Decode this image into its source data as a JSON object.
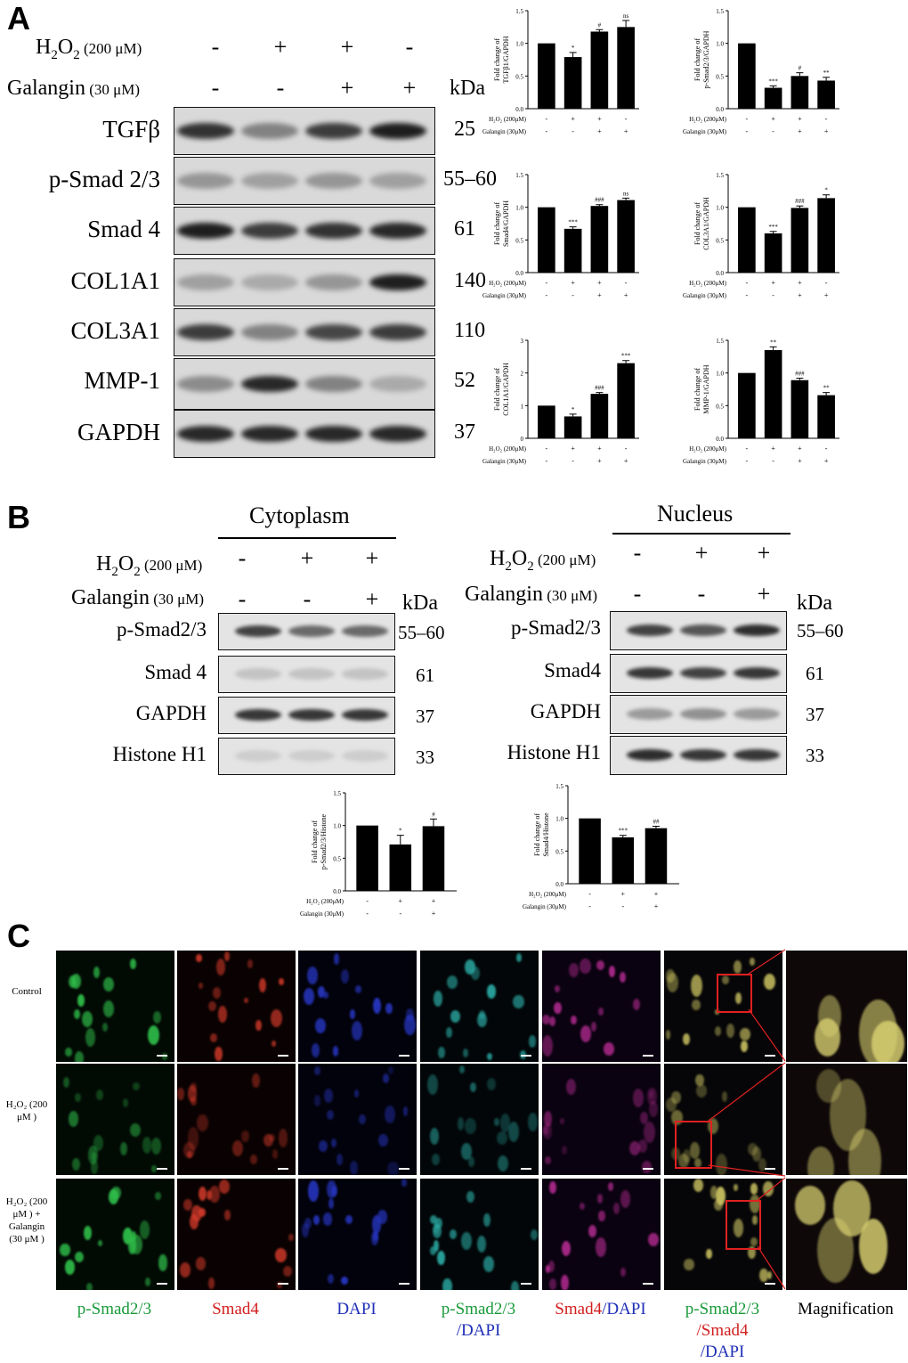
{
  "panel_a": {
    "letter": "A",
    "conditions": [
      {
        "label": "H",
        "sub": "2",
        "label2": "O",
        "sub2": "2",
        "dose": " (200 μM)",
        "signs": [
          "-",
          "+",
          "+",
          "-"
        ]
      },
      {
        "label": "Galangin",
        "dose": " (30 μM)",
        "signs": [
          "-",
          "-",
          "+",
          "+"
        ]
      }
    ],
    "kda": "kDa",
    "blots": [
      {
        "name": "TGFβ",
        "mw": "25"
      },
      {
        "name": "p-Smad 2/3",
        "mw": "55–60"
      },
      {
        "name": "Smad 4",
        "mw": "61"
      },
      {
        "name": "COL1A1",
        "mw": "140"
      },
      {
        "name": "COL3A1",
        "mw": "110"
      },
      {
        "name": "MMP-1",
        "mw": "52"
      },
      {
        "name": "GAPDH",
        "mw": "37"
      }
    ]
  },
  "chart_cond": {
    "h2o2": "H₂O₂ (200μM)",
    "galangin": "Galangin (30μM)",
    "h2o2_signs": [
      "-",
      "+",
      "+",
      "-"
    ],
    "gal_signs": [
      "-",
      "-",
      "+",
      "+"
    ]
  },
  "chart_data": [
    {
      "type": "bar",
      "ylabel": "Fold change of TGFβ1/GAPDH",
      "yticks": [
        "0.0",
        "0.5",
        "1.0",
        "1.5"
      ],
      "ylim": [
        0,
        1.5
      ],
      "values": [
        1.0,
        0.79,
        1.18,
        1.25
      ],
      "errors": [
        0,
        0.07,
        0.03,
        0.1
      ],
      "annotations": [
        "",
        "*",
        "#",
        "ns"
      ]
    },
    {
      "type": "bar",
      "ylabel": "Fold change of p-Smad2/3/GAPDH",
      "yticks": [
        "0.0",
        "0.5",
        "1.0",
        "1.5"
      ],
      "ylim": [
        0,
        1.5
      ],
      "values": [
        1.0,
        0.32,
        0.5,
        0.43
      ],
      "errors": [
        0,
        0.03,
        0.05,
        0.05
      ],
      "annotations": [
        "",
        "***",
        "#",
        "**"
      ]
    },
    {
      "type": "bar",
      "ylabel": "Fold change of Smad4/GAPDH",
      "yticks": [
        "0.0",
        "0.5",
        "1.0",
        "1.5"
      ],
      "ylim": [
        0,
        1.5
      ],
      "values": [
        1.0,
        0.67,
        1.02,
        1.11
      ],
      "errors": [
        0,
        0.03,
        0.02,
        0.03
      ],
      "annotations": [
        "",
        "***",
        "###",
        "ns"
      ]
    },
    {
      "type": "bar",
      "ylabel": "Fold change of COL3A1/GAPDH",
      "yticks": [
        "0.0",
        "0.5",
        "1.0",
        "1.5"
      ],
      "ylim": [
        0,
        1.5
      ],
      "values": [
        1.0,
        0.6,
        0.99,
        1.14
      ],
      "errors": [
        0,
        0.03,
        0.03,
        0.05
      ],
      "annotations": [
        "",
        "***",
        "###",
        "*"
      ]
    },
    {
      "type": "bar",
      "ylabel": "Fold change of COL1A1/GAPDH",
      "yticks": [
        "0",
        "1",
        "2",
        "3"
      ],
      "ylim": [
        0,
        3
      ],
      "values": [
        1.0,
        0.67,
        1.36,
        2.3
      ],
      "errors": [
        0,
        0.07,
        0.04,
        0.08
      ],
      "annotations": [
        "",
        "*",
        "###",
        "***"
      ]
    },
    {
      "type": "bar",
      "ylabel": "Fold change of MMP-1/GAPDH",
      "yticks": [
        "0.0",
        "0.5",
        "1.0",
        "1.5"
      ],
      "ylim": [
        0,
        1.5
      ],
      "values": [
        1.0,
        1.35,
        0.89,
        0.66
      ],
      "errors": [
        0,
        0.05,
        0.03,
        0.04
      ],
      "annotations": [
        "",
        "**",
        "###",
        "**"
      ]
    },
    {
      "type": "bar",
      "ylabel": "Fold change of p-Smad2/3/Histone",
      "yticks": [
        "0.0",
        "0.5",
        "1.0",
        "1.5"
      ],
      "ylim": [
        0,
        1.5
      ],
      "values": [
        1.0,
        0.71,
        0.99,
        null
      ],
      "errors": [
        0,
        0.14,
        0.11,
        0
      ],
      "annotations": [
        "",
        "*",
        "#",
        ""
      ]
    },
    {
      "type": "bar",
      "ylabel": "Fold change of Smad4/Histone",
      "yticks": [
        "0.0",
        "0.5",
        "1.0",
        "1.5"
      ],
      "ylim": [
        0,
        1.5
      ],
      "values": [
        1.0,
        0.71,
        0.85,
        null
      ],
      "errors": [
        0,
        0.03,
        0.03,
        0
      ],
      "annotations": [
        "",
        "***",
        "##",
        ""
      ]
    }
  ],
  "panel_b": {
    "letter": "B",
    "cytoplasm": "Cytoplasm",
    "nucleus": "Nucleus",
    "h2o2": "H",
    "h2o2_dose": " (200 μM)",
    "galangin": "Galangin",
    "galangin_dose": " (30 μM)",
    "h2o2_signs": [
      "-",
      "+",
      "+"
    ],
    "gal_signs": [
      "-",
      "-",
      "+"
    ],
    "kda": "kDa",
    "cyto_blots": [
      {
        "name": "p-Smad2/3",
        "mw": "55–60"
      },
      {
        "name": "Smad 4",
        "mw": "61"
      },
      {
        "name": "GAPDH",
        "mw": "37"
      },
      {
        "name": "Histone H1",
        "mw": "33"
      }
    ],
    "nuc_blots": [
      {
        "name": "p-Smad2/3",
        "mw": "55–60"
      },
      {
        "name": "Smad4",
        "mw": "61"
      },
      {
        "name": "GAPDH",
        "mw": "37"
      },
      {
        "name": "Histone H1",
        "mw": "33"
      }
    ],
    "chart_h2o2": "H₂O₂ (200μM)",
    "chart_gal": "Galangin (30μM)",
    "chart_h2o2_signs": [
      "-",
      "+",
      "+"
    ],
    "chart_gal_signs": [
      "-",
      "-",
      "+"
    ]
  },
  "panel_c": {
    "letter": "C",
    "rows": [
      {
        "label": "Control"
      },
      {
        "label": "H₂O₂ (200 μM )"
      },
      {
        "label": "H₂O₂ (200 μM ) + Galangin (30 μM )"
      }
    ],
    "captions": [
      {
        "text": "p-Smad2/3",
        "color": "#1a9a3a"
      },
      {
        "text": "Smad4",
        "color": "#d21f1f"
      },
      {
        "text": "DAPI",
        "color": "#1f2fb8"
      },
      {
        "text": "p-Smad2/3 /DAPI",
        "color": "#1a9a3a"
      },
      {
        "text": "Smad4/DAPI",
        "color": "#d21f1f"
      },
      {
        "text": "p-Smad2/3 /Smad4 /DAPI",
        "color": "#1a9a3a"
      },
      {
        "text": "Magnification",
        "color": "#000000"
      }
    ]
  }
}
